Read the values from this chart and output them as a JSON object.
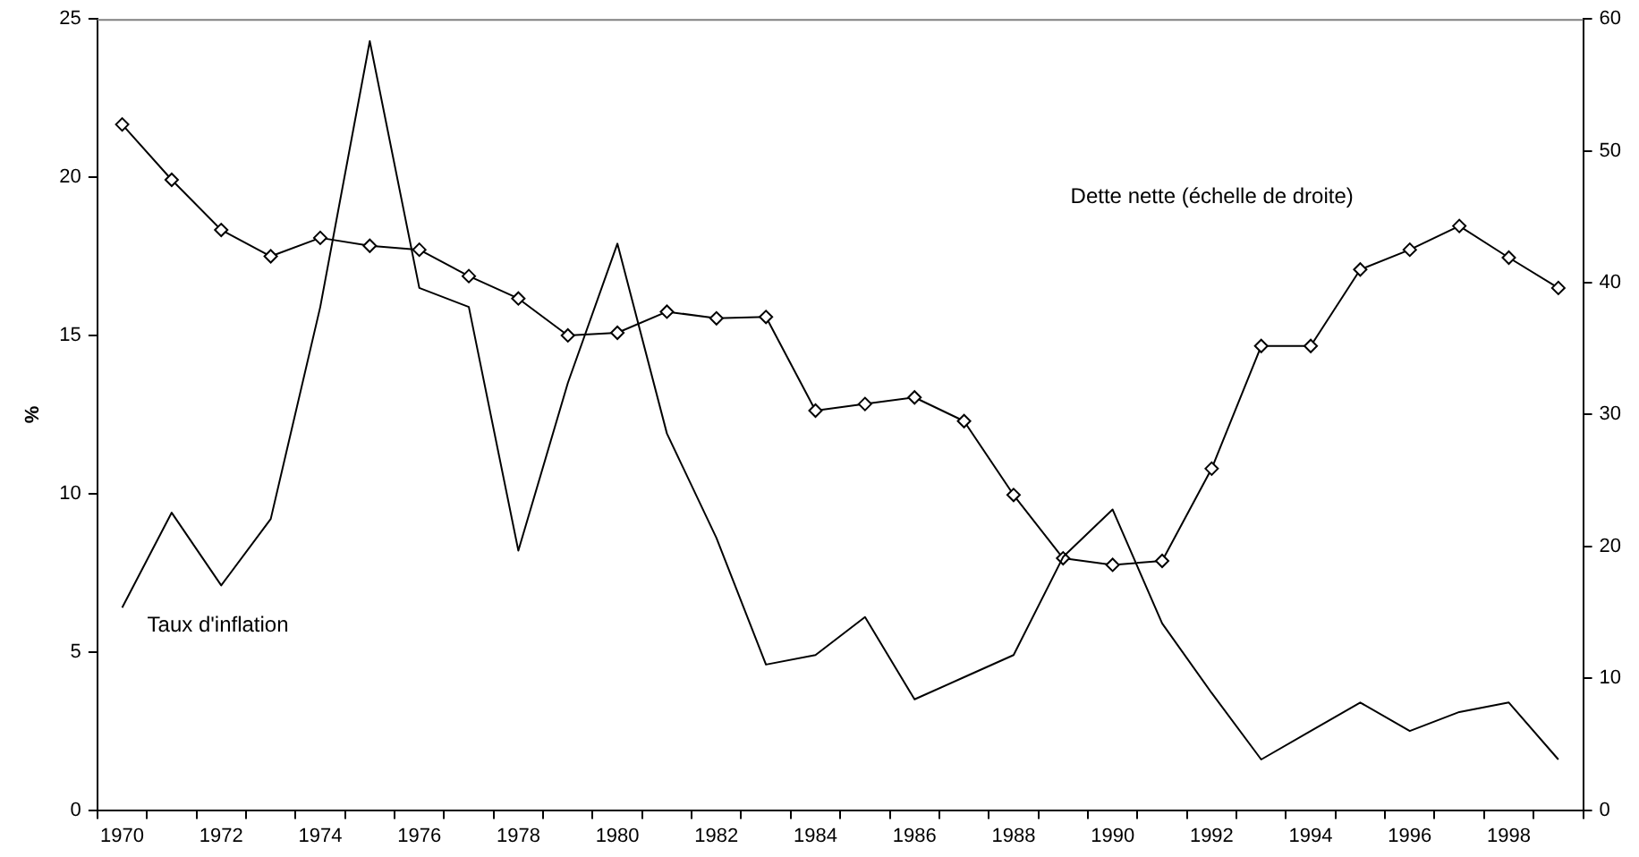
{
  "chart_data": {
    "type": "line",
    "categories": [
      "1970",
      null,
      "1972",
      null,
      "1974",
      null,
      "1976",
      null,
      "1978",
      null,
      "1980",
      null,
      "1982",
      null,
      "1984",
      null,
      "1986",
      null,
      "1988",
      null,
      "1990",
      null,
      "1992",
      null,
      "1994",
      null,
      "1996",
      null,
      "1998",
      null
    ],
    "series": [
      {
        "name": "Taux d'inflation",
        "color": "#000000",
        "marker": "none",
        "values": [
          6.4,
          9.4,
          7.1,
          9.2,
          15.9,
          24.3,
          16.5,
          15.9,
          8.2,
          13.5,
          17.9,
          11.9,
          8.6,
          4.6,
          4.9,
          6.1,
          3.5,
          4.2,
          4.9,
          8.0,
          9.5,
          5.9,
          3.7,
          1.6,
          2.5,
          3.4,
          2.5,
          3.1,
          3.4,
          1.6
        ]
      },
      {
        "name": "Dette nette (échelle de droite)",
        "color": "#000000",
        "marker": "diamond",
        "axis": "y2",
        "values": [
          52.0,
          47.8,
          44.0,
          42.0,
          43.4,
          42.8,
          42.5,
          40.5,
          38.8,
          36.0,
          36.2,
          37.8,
          37.3,
          37.4,
          30.3,
          30.8,
          31.3,
          29.5,
          23.9,
          19.1,
          18.6,
          18.9,
          25.9,
          35.2,
          35.2,
          41.0,
          42.5,
          44.3,
          41.9,
          39.6
        ]
      }
    ],
    "ylabel": "%",
    "ylim": [
      0,
      25
    ],
    "yticks": [
      0,
      5,
      10,
      15,
      20,
      25
    ],
    "y2lim": [
      0,
      60
    ],
    "y2ticks": [
      0,
      10,
      20,
      30,
      40,
      50,
      60
    ],
    "grid": false,
    "legend": false
  }
}
